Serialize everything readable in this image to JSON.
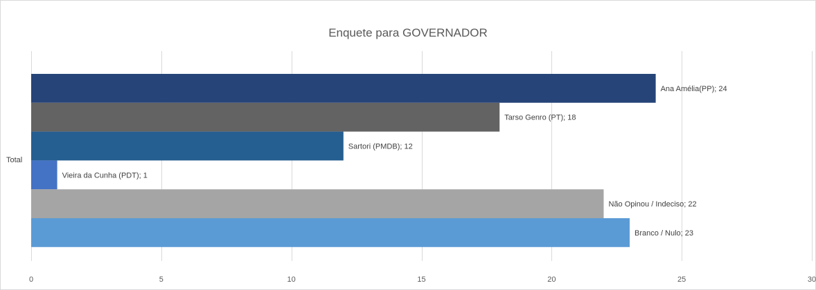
{
  "chart_data": {
    "type": "bar",
    "orientation": "horizontal",
    "title": "Enquete para GOVERNADOR",
    "categories": [
      "Total"
    ],
    "xlim": [
      0,
      30
    ],
    "ticks": [
      "0",
      "5",
      "10",
      "15",
      "20",
      "25",
      "30"
    ],
    "gridlines": true,
    "legend": "none",
    "series": [
      {
        "name": "Ana Amélia(PP)",
        "values": [
          24
        ],
        "label": "Ana Amélia(PP); 24",
        "color": "#264478"
      },
      {
        "name": "Tarso Genro (PT)",
        "values": [
          18
        ],
        "label": "Tarso Genro (PT); 18",
        "color": "#636363"
      },
      {
        "name": "Sartori (PMDB)",
        "values": [
          12
        ],
        "label": "Sartori (PMDB); 12",
        "color": "#255E91"
      },
      {
        "name": "Vieira da Cunha (PDT)",
        "values": [
          1
        ],
        "label": "Vieira da Cunha (PDT); 1",
        "color": "#4472C4"
      },
      {
        "name": "Não Opinou / Indeciso",
        "values": [
          22
        ],
        "label": "Não Opinou / Indeciso; 22",
        "color": "#A5A5A5"
      },
      {
        "name": "Branco / Nulo",
        "values": [
          23
        ],
        "label": "Branco / Nulo; 23",
        "color": "#5B9BD5"
      }
    ]
  }
}
